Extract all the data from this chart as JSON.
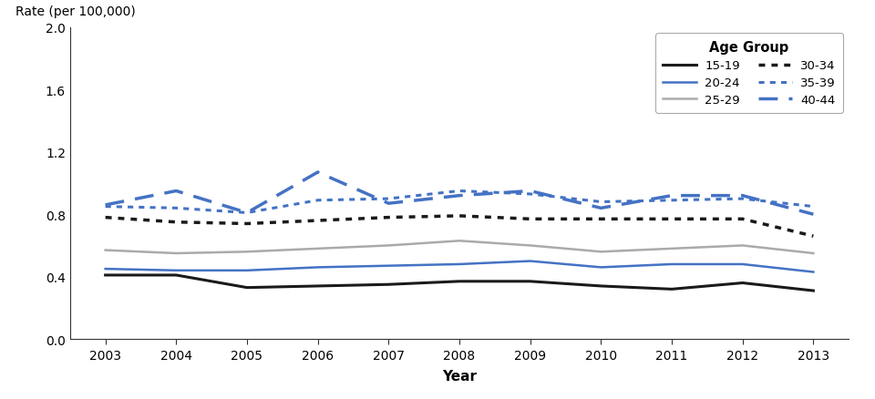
{
  "years": [
    2003,
    2004,
    2005,
    2006,
    2007,
    2008,
    2009,
    2010,
    2011,
    2012,
    2013
  ],
  "series": {
    "15-19": [
      0.41,
      0.41,
      0.33,
      0.34,
      0.35,
      0.37,
      0.37,
      0.34,
      0.32,
      0.36,
      0.31
    ],
    "20-24": [
      0.45,
      0.44,
      0.44,
      0.46,
      0.47,
      0.48,
      0.5,
      0.46,
      0.48,
      0.48,
      0.43
    ],
    "25-29": [
      0.57,
      0.55,
      0.56,
      0.58,
      0.6,
      0.63,
      0.6,
      0.56,
      0.58,
      0.6,
      0.55
    ],
    "30-34": [
      0.78,
      0.75,
      0.74,
      0.76,
      0.78,
      0.79,
      0.77,
      0.77,
      0.77,
      0.77,
      0.66
    ],
    "35-39": [
      0.85,
      0.84,
      0.81,
      0.89,
      0.9,
      0.95,
      0.93,
      0.88,
      0.89,
      0.9,
      0.85
    ],
    "40-44": [
      0.86,
      0.95,
      0.81,
      1.07,
      0.87,
      0.92,
      0.95,
      0.84,
      0.92,
      0.92,
      0.8
    ]
  },
  "line_styles": {
    "15-19": {
      "color": "#1a1a1a",
      "linestyle": "solid",
      "linewidth": 2.2
    },
    "20-24": {
      "color": "#4472C4",
      "linestyle": "solid",
      "linewidth": 1.8
    },
    "25-29": {
      "color": "#aaaaaa",
      "linestyle": "solid",
      "linewidth": 1.8
    },
    "30-34": {
      "color": "#1a1a1a",
      "linestyle": "dotted",
      "linewidth": 2.5
    },
    "35-39": {
      "color": "#4472C4",
      "linestyle": "dotted",
      "linewidth": 2.2
    },
    "40-44": {
      "color": "#4472C4",
      "linestyle": "dashed",
      "linewidth": 2.5
    }
  },
  "top_ylabel": "Rate (per 100,000)",
  "xlabel": "Year",
  "legend_title": "Age Group",
  "ylim": [
    0.0,
    2.0
  ],
  "yticks": [
    0.0,
    0.4,
    0.8,
    1.2,
    1.6,
    2.0
  ],
  "legend_labels_col1": [
    "15-19",
    "20-24",
    "25-29"
  ],
  "legend_labels_col2": [
    "30-34",
    "35-39",
    "40-44"
  ]
}
